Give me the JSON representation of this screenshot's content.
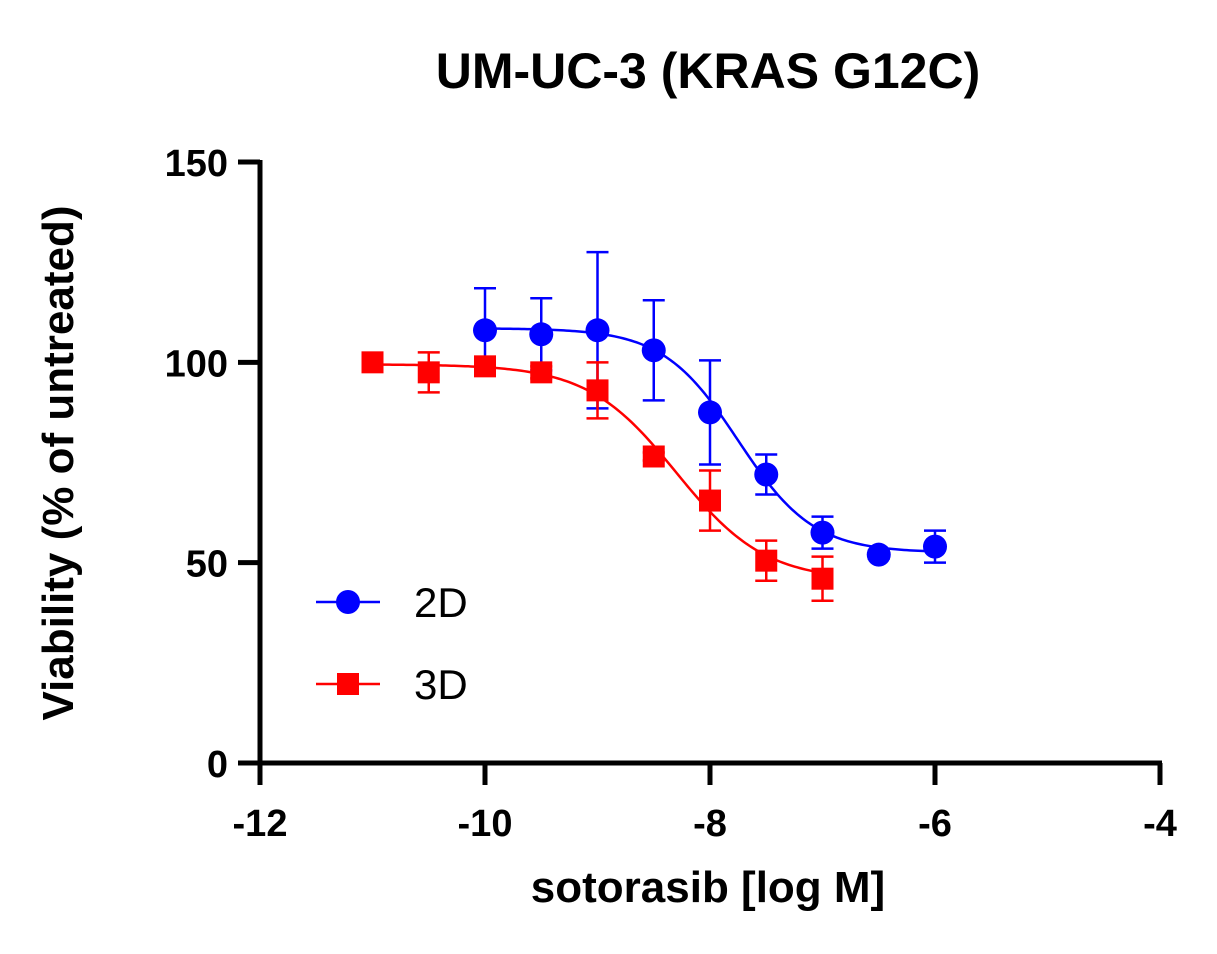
{
  "chart_data": {
    "type": "scatter",
    "title": "UM-UC-3 (KRAS G12C)",
    "xlabel": "sotorasib [log M]",
    "ylabel": "Viability (% of untreated)",
    "xlim": [
      -12,
      -4
    ],
    "ylim": [
      0,
      150
    ],
    "xticks": [
      -12,
      -10,
      -8,
      -6,
      -4
    ],
    "yticks": [
      0,
      50,
      100,
      150
    ],
    "grid": false,
    "legend_position": "bottom-left",
    "series": [
      {
        "name": "2D",
        "color": "#0000ff",
        "marker": "circle",
        "x": [
          -10,
          -9.5,
          -9,
          -8.5,
          -8,
          -7.5,
          -7,
          -6.5,
          -6
        ],
        "y": [
          108,
          107,
          108,
          103,
          87.5,
          72,
          57.5,
          52,
          54
        ],
        "error": [
          10.5,
          9,
          19.5,
          12.5,
          13,
          5,
          4,
          1,
          4
        ],
        "fit": {
          "top": 108.5,
          "bottom": 52.5,
          "logIC50": -7.75,
          "hill": 1.3
        }
      },
      {
        "name": "3D",
        "color": "#ff0000",
        "marker": "square",
        "x": [
          -11,
          -10.5,
          -10,
          -9.5,
          -9,
          -8.5,
          -8,
          -7.5,
          -7
        ],
        "y": [
          100,
          97.5,
          99,
          97.5,
          93,
          76.5,
          65.5,
          50.5,
          46
        ],
        "error": [
          0,
          5,
          2,
          1.5,
          7,
          1,
          7.5,
          5,
          5.5
        ],
        "fit": {
          "top": 99.5,
          "bottom": 45.5,
          "logIC50": -8.3,
          "hill": 1.1
        }
      }
    ]
  }
}
